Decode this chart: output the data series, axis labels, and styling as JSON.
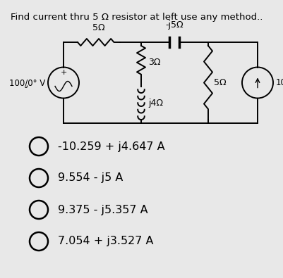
{
  "title": "Find current thru 5 Ω resistor at left use any method..",
  "background_color": "#e8e8e8",
  "options": [
    "-10.259 + j4.647 A",
    "9.554 - j5 A",
    "9.375 - j5.357 A",
    "7.054 + j3.527 A"
  ],
  "title_fontsize": 9.5,
  "option_fontsize": 11.5,
  "label_fontsize": 9
}
